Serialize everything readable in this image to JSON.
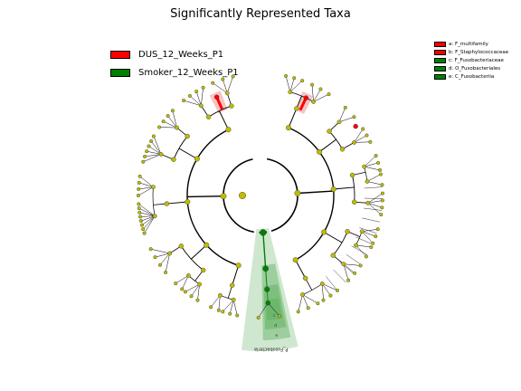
{
  "title": "Significantly Represented Taxa",
  "colors": {
    "DUS": "#ff0000",
    "Smoker": "#008000",
    "node": "#bcbc00",
    "clade_red": "#f4aaaa",
    "clade_green": "#5fb05f"
  },
  "legend_groups": [
    {
      "label": "DUS_12_Weeks_P1",
      "color": "#ff0000"
    },
    {
      "label": "Smoker_12_Weeks_P1",
      "color": "#008000"
    }
  ],
  "legend_taxa": [
    {
      "label": "a: F_multifamily",
      "color": "#ff0000"
    },
    {
      "label": "b: F_Staphylococcaceae",
      "color": "#ff0000"
    },
    {
      "label": "c: F_Fusobacteriaceae",
      "color": "#008000"
    },
    {
      "label": "d: O_Fusobacteriales",
      "color": "#008000"
    },
    {
      "label": "e: C_Fusobacteriia",
      "color": "#008000"
    }
  ],
  "chart_data": {
    "type": "cladogram",
    "title": "Significantly Represented Taxa",
    "groups": [
      "DUS_12_Weeks_P1",
      "Smoker_12_Weeks_P1"
    ],
    "highlighted_clades": [
      {
        "letter": "a",
        "taxon": "F_multifamily",
        "group": "DUS_12_Weeks_P1"
      },
      {
        "letter": "b",
        "taxon": "F_Staphylococcaceae",
        "group": "DUS_12_Weeks_P1"
      },
      {
        "letter": "c",
        "taxon": "F_Fusobacteriaceae",
        "group": "Smoker_12_Weeks_P1"
      },
      {
        "letter": "d",
        "taxon": "O_Fusobacteriales",
        "group": "Smoker_12_Weeks_P1"
      },
      {
        "letter": "e",
        "taxon": "C_Fusobacteriia",
        "group": "Smoker_12_Weeks_P1"
      }
    ],
    "phylum_labels": [
      "P_Fusobacteria"
    ],
    "clade_letters": [
      "a",
      "b",
      "c",
      "d",
      "e"
    ]
  }
}
